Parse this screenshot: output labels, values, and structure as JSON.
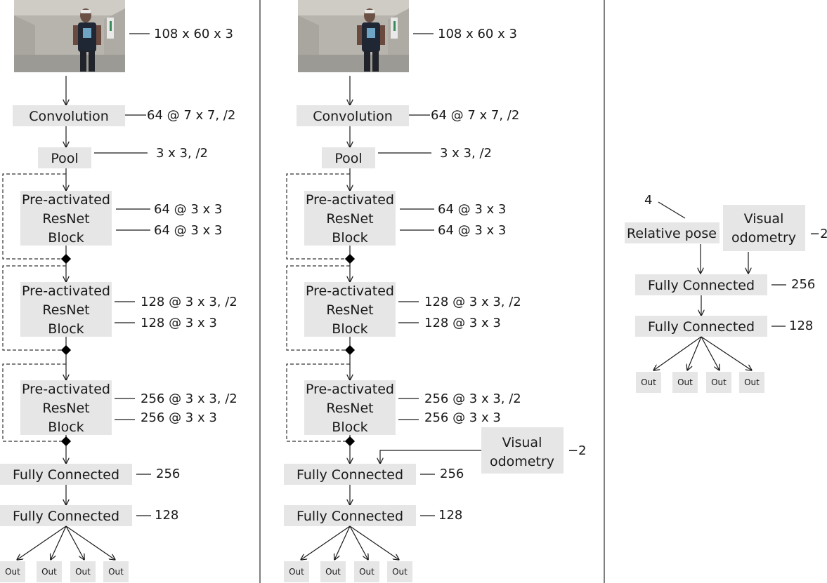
{
  "image_caption_label": "108 x 60 x 3",
  "conv": {
    "label": "Convolution",
    "param": "64 @ 7 x 7, /2"
  },
  "pool": {
    "label": "Pool",
    "param": "3 x 3, /2"
  },
  "res_blocks": [
    {
      "label": [
        "Pre-activated",
        "ResNet",
        "Block"
      ],
      "params": [
        "64 @ 3 x 3",
        "64 @ 3 x 3"
      ]
    },
    {
      "label": [
        "Pre-activated",
        "ResNet",
        "Block"
      ],
      "params": [
        "128 @ 3 x 3, /2",
        "128 @ 3 x 3"
      ]
    },
    {
      "label": [
        "Pre-activated",
        "ResNet",
        "Block"
      ],
      "params": [
        "256 @ 3 x 3, /2",
        "256 @ 3 x 3"
      ]
    }
  ],
  "fc1": {
    "label": "Fully Connected",
    "param": "256"
  },
  "fc2": {
    "label": "Fully Connected",
    "param": "128"
  },
  "out_label": "Out",
  "visual_odometry": {
    "label": [
      "Visual",
      "odometry"
    ],
    "param": "−2"
  },
  "relative_pose": {
    "label": "Relative pose",
    "param": "4"
  },
  "colors": {
    "box": "#e6e6e6",
    "line": "#1a1a1a",
    "photo_wall": "#b7b4ae"
  }
}
